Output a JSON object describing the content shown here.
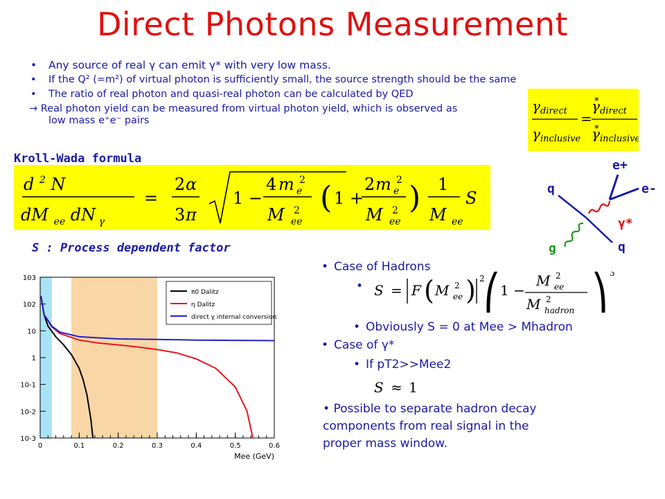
{
  "title": "Direct Photons Measurement",
  "bullets": [
    {
      "marker": "•",
      "text": "Any source of real γ can emit γ* with very low mass."
    },
    {
      "marker": "•",
      "text": "If the Q² (=m²) of virtual photon is sufficiently small, the source strength should be the same"
    },
    {
      "marker": "•",
      "text": "The ratio of real photon and quasi-real photon can be calculated by QED"
    }
  ],
  "arrow_line": "→ Real photon yield can be measured from virtual photon yield, which is observed as",
  "arrow_line_cont": "low mass e⁺e⁻ pairs",
  "ratio_formula": {
    "lhs_num": "γdirect",
    "lhs_den": "γinclusive",
    "rhs_num": "γ*direct",
    "rhs_den": "γ*inclusive"
  },
  "kroll_wada_label": "Kroll-Wada formula",
  "s_label": "S : Process dependent factor",
  "feynman": {
    "q_top": "q",
    "q_bottom": "q",
    "g": "g",
    "e_plus": "e+",
    "e_minus": "e-",
    "gamma_star": "γ*"
  },
  "side": {
    "case_hadrons": "Case of Hadrons",
    "obviously": "Obviously S = 0 at Mee > Mhadron",
    "case_gamma": "Case of γ*",
    "if_pt": "If pT2>>Mee2",
    "possible_1": "Possible to separate hadron decay",
    "possible_2": "components from real signal in the",
    "possible_3": "proper mass window."
  },
  "chart_data": {
    "type": "line",
    "xlabel": "Mee (GeV)",
    "ylabel": "",
    "xlim": [
      0,
      0.6
    ],
    "ylim": [
      0.001,
      1000
    ],
    "yscale": "log",
    "x_ticks": [
      "0",
      "0.1",
      "0.2",
      "0.3",
      "0.4",
      "0.5",
      "0.6"
    ],
    "y_ticks": [
      "10-3",
      "10-2",
      "10-1",
      "1",
      "10",
      "102",
      "103"
    ],
    "shaded_regions": [
      {
        "x": [
          0,
          0.03
        ],
        "color": "#a8e4f8"
      },
      {
        "x": [
          0.08,
          0.3
        ],
        "color": "#f9d6a6"
      }
    ],
    "series": [
      {
        "name": "π0 Dalitz",
        "color": "#000000",
        "x": [
          0.002,
          0.01,
          0.02,
          0.04,
          0.06,
          0.08,
          0.1,
          0.11,
          0.12,
          0.13,
          0.135
        ],
        "y": [
          200,
          40,
          15,
          6,
          3,
          1.3,
          0.4,
          0.15,
          0.04,
          0.005,
          0.001
        ]
      },
      {
        "name": "η Dalitz",
        "color": "#e8141e",
        "x": [
          0.002,
          0.01,
          0.03,
          0.05,
          0.1,
          0.15,
          0.2,
          0.25,
          0.3,
          0.35,
          0.4,
          0.45,
          0.5,
          0.53,
          0.545
        ],
        "y": [
          200,
          40,
          14,
          8,
          4.5,
          3.5,
          3,
          2.5,
          2,
          1.5,
          0.9,
          0.4,
          0.08,
          0.01,
          0.001
        ]
      },
      {
        "name": "direct γ internal conversion",
        "color": "#2020c8",
        "x": [
          0.002,
          0.01,
          0.03,
          0.05,
          0.1,
          0.2,
          0.3,
          0.4,
          0.5,
          0.6
        ],
        "y": [
          200,
          40,
          15,
          9,
          6,
          5,
          4.8,
          4.5,
          4.4,
          4.3
        ]
      }
    ]
  }
}
